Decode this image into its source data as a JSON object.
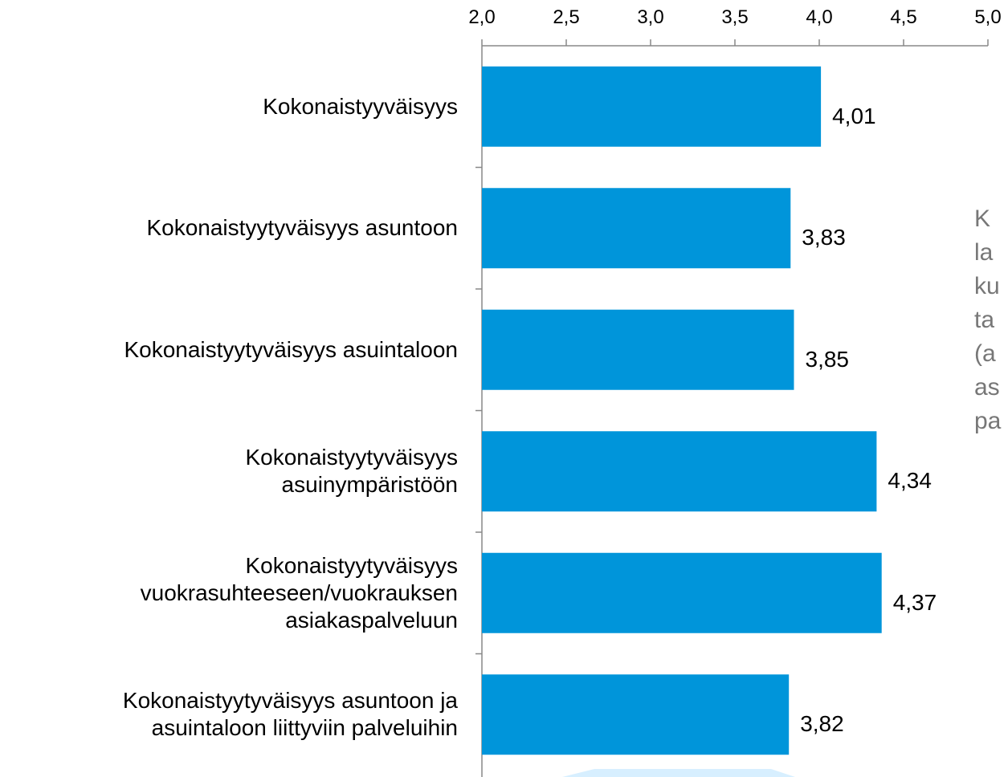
{
  "chart_data": {
    "type": "bar",
    "orientation": "horizontal",
    "categories": [
      "Kokonaistyyväisyys",
      "Kokonaistyytyväisyys asuntoon",
      "Kokonaistyytyväisyys asuintaloon",
      "Kokonaistyytyväisyys\nasuinympäristöön",
      "Kokonaistyytyväisyys\nvuokrasuhteeseen/vuokrauksen\nasiakaspalveluun",
      "Kokonaistyytyväisyys asuntoon ja\nasuintaloon liittyviin palveluihin"
    ],
    "values": [
      4.01,
      3.83,
      3.85,
      4.34,
      4.37,
      3.82
    ],
    "value_labels": [
      "4,01",
      "3,83",
      "3,85",
      "4,34",
      "4,37",
      "3,82"
    ],
    "color": "#0095da",
    "xlim": [
      2,
      5
    ],
    "xticks": [
      {
        "value": 2,
        "label": "2,0"
      },
      {
        "value": 2.5,
        "label": "2,5"
      },
      {
        "value": 3,
        "label": "3,0"
      },
      {
        "value": 3.5,
        "label": "3,5"
      },
      {
        "value": 4,
        "label": "4,0"
      },
      {
        "value": 4.5,
        "label": "4,5"
      },
      {
        "value": 5,
        "label": "5,0"
      }
    ],
    "annotation": [
      "K",
      "la",
      "ku",
      "ta",
      "(a",
      "as",
      "pa"
    ]
  }
}
